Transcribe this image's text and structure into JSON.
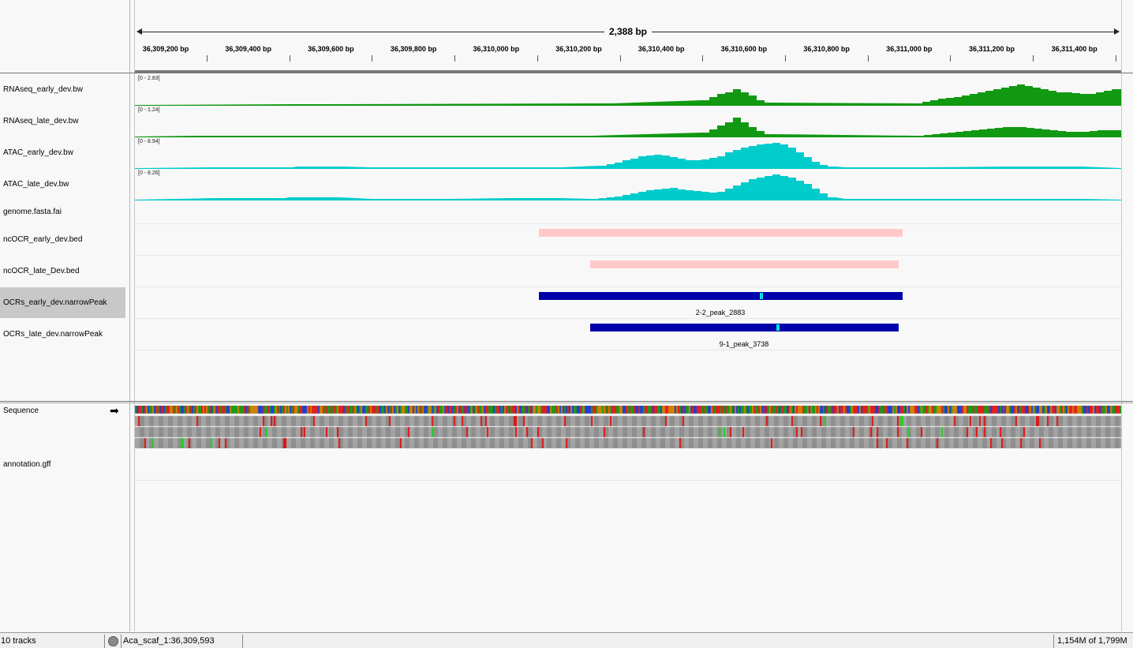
{
  "ruler": {
    "span_label": "2,388 bp",
    "ticks": [
      "36,309,200 bp",
      "36,309,400 bp",
      "36,309,600 bp",
      "36,309,800 bp",
      "36,310,000 bp",
      "36,310,200 bp",
      "36,310,400 bp",
      "36,310,600 bp",
      "36,310,800 bp",
      "36,311,000 bp",
      "36,311,200 bp",
      "36,311,400 bp"
    ]
  },
  "tracks": [
    {
      "name": "RNAseq_early_dev.bw",
      "range": "[0 - 2.83]",
      "color": "#119911"
    },
    {
      "name": "RNAseq_late_dev.bw",
      "range": "[0 - 1.24]",
      "color": "#119911"
    },
    {
      "name": "ATAC_early_dev.bw",
      "range": "[0 - 8.94]",
      "color": "#00cccc"
    },
    {
      "name": "ATAC_late_dev.bw",
      "range": "[0 - 8.26]",
      "color": "#00cccc"
    },
    {
      "name": "genome.fasta.fai"
    },
    {
      "name": "ncOCR_early_dev.bed",
      "color": "#ffc8c8"
    },
    {
      "name": "ncOCR_late_Dev.bed",
      "color": "#ffc8c8"
    },
    {
      "name": "OCRs_early_dev.narrowPeak",
      "color": "#0000aa",
      "feature_label": "2-2_peak_2883",
      "selected": true
    },
    {
      "name": "OCRs_late_dev.narrowPeak",
      "color": "#0000aa",
      "feature_label": "9-1_peak_3738"
    }
  ],
  "lower_tracks": {
    "sequence": "Sequence",
    "annotation": "annotation.gff"
  },
  "status": {
    "track_count": "10 tracks",
    "locus": "Aca_scaf_1:36,309,593",
    "memory": "1,154M of 1,799M"
  }
}
